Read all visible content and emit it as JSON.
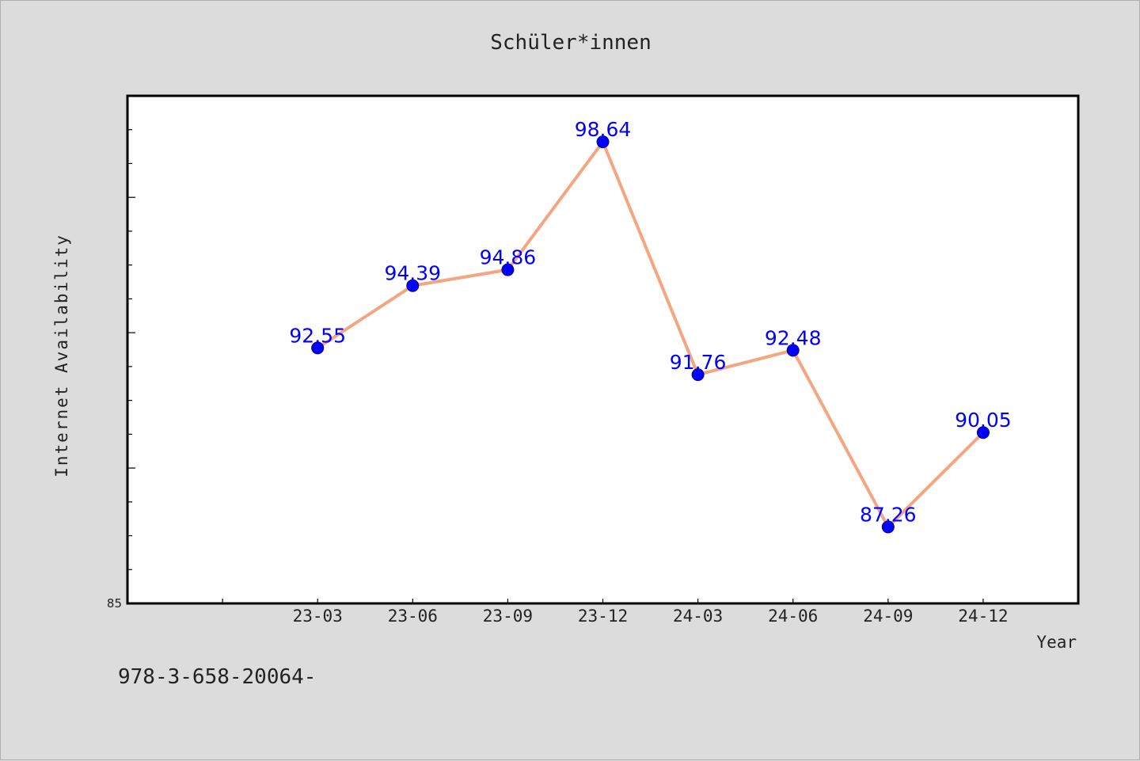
{
  "chart_data": {
    "type": "line",
    "title": "Schüler*innen",
    "xlabel": "Year",
    "ylabel": "Internet Availability",
    "categories": [
      "23-03",
      "23-06",
      "23-09",
      "23-12",
      "24-03",
      "24-06",
      "24-09",
      "24-12"
    ],
    "series": [
      {
        "values": [
          92.55,
          94.39,
          94.86,
          98.64,
          91.76,
          92.48,
          87.26,
          90.05
        ]
      }
    ],
    "x_slots": 10,
    "ylim": [
      85,
      100
    ],
    "y_ticks_labeled": [
      85
    ],
    "y_minor_step": 1,
    "line_color": "#f4a582",
    "marker_color": "#0000ff",
    "label_color": "#0000ff",
    "grid": false
  },
  "footnote": "978-3-658-20064-"
}
